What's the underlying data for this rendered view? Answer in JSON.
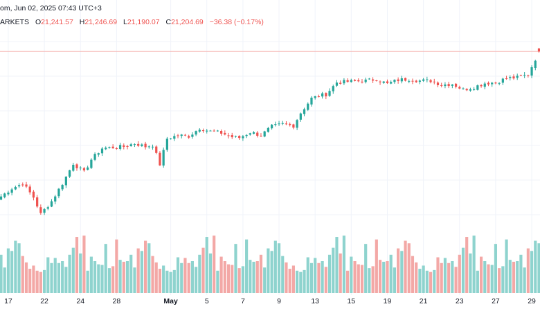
{
  "header": {
    "top_text": "om, Jun 02, 2025 07:43 UTC+3",
    "source_text": "ARKETS",
    "open_label": "O",
    "open_value": "21,241.57",
    "high_label": "H",
    "high_value": "21,246.69",
    "low_label": "L",
    "low_value": "21,190.07",
    "close_label": "C",
    "close_value": "21,204.69",
    "change_value": "−36.38 (−0.17%)"
  },
  "colors": {
    "up": "#26a69a",
    "down": "#ef5350",
    "up_volume": "#8ed3ce",
    "down_volume": "#f3a8a6",
    "price_line": "#f5b8b6",
    "grid": "#f0f3fa"
  },
  "chart_data": {
    "type": "candlestick",
    "title": "",
    "xlabel": "",
    "ylabel": "",
    "grid": true,
    "last_price_line": 21204.69,
    "ylim": [
      19000,
      21500
    ],
    "x_ticks": [
      {
        "label": "17",
        "index": 2,
        "bold": false
      },
      {
        "label": "22",
        "index": 12,
        "bold": false
      },
      {
        "label": "24",
        "index": 22,
        "bold": false
      },
      {
        "label": "28",
        "index": 32,
        "bold": false
      },
      {
        "label": "May",
        "index": 47,
        "bold": true
      },
      {
        "label": "5",
        "index": 57,
        "bold": false
      },
      {
        "label": "7",
        "index": 67,
        "bold": false
      },
      {
        "label": "9",
        "index": 77,
        "bold": false
      },
      {
        "label": "13",
        "index": 87,
        "bold": false
      },
      {
        "label": "15",
        "index": 97,
        "bold": false
      },
      {
        "label": "19",
        "index": 107,
        "bold": false
      },
      {
        "label": "21",
        "index": 117,
        "bold": false
      },
      {
        "label": "23",
        "index": 127,
        "bold": false
      },
      {
        "label": "27",
        "index": 137,
        "bold": false
      },
      {
        "label": "29",
        "index": 147,
        "bold": false
      }
    ],
    "close_path": [
      [
        0,
        19400
      ],
      [
        3,
        19500
      ],
      [
        6,
        19560
      ],
      [
        9,
        19390
      ],
      [
        11,
        19180
      ],
      [
        14,
        19340
      ],
      [
        17,
        19560
      ],
      [
        20,
        19810
      ],
      [
        23,
        19700
      ],
      [
        25,
        19860
      ],
      [
        28,
        20000
      ],
      [
        31,
        20010
      ],
      [
        34,
        20020
      ],
      [
        37,
        20060
      ],
      [
        40,
        20020
      ],
      [
        42,
        20040
      ],
      [
        44,
        19800
      ],
      [
        46,
        20120
      ],
      [
        49,
        20160
      ],
      [
        52,
        20150
      ],
      [
        55,
        20250
      ],
      [
        58,
        20210
      ],
      [
        61,
        20190
      ],
      [
        64,
        20140
      ],
      [
        66,
        20130
      ],
      [
        69,
        20200
      ],
      [
        72,
        20160
      ],
      [
        75,
        20270
      ],
      [
        78,
        20300
      ],
      [
        81,
        20280
      ],
      [
        83,
        20440
      ],
      [
        86,
        20620
      ],
      [
        88,
        20650
      ],
      [
        90,
        20670
      ],
      [
        93,
        20820
      ],
      [
        97,
        20830
      ],
      [
        101,
        20840
      ],
      [
        104,
        20860
      ],
      [
        107,
        20800
      ],
      [
        110,
        20850
      ],
      [
        113,
        20860
      ],
      [
        116,
        20840
      ],
      [
        119,
        20840
      ],
      [
        122,
        20790
      ],
      [
        125,
        20800
      ],
      [
        128,
        20730
      ],
      [
        131,
        20760
      ],
      [
        134,
        20810
      ],
      [
        137,
        20820
      ],
      [
        140,
        20870
      ],
      [
        143,
        20880
      ],
      [
        146,
        20920
      ],
      [
        148,
        21110
      ],
      [
        149,
        21204.69
      ]
    ],
    "volume_pattern": [
      0.55,
      0.35,
      0.78,
      0.6,
      0.42,
      0.5,
      0.88,
      0.47,
      0.33,
      0.58,
      0.4,
      0.84,
      0.45,
      0.62,
      0.5,
      0.36,
      0.48,
      0.7,
      0.52,
      0.44,
      0.9,
      0.41,
      0.56,
      0.38,
      0.66,
      0.49,
      0.77,
      0.35,
      0.6,
      0.47,
      0.43,
      0.82,
      0.5,
      0.39,
      0.57,
      0.71
    ]
  }
}
